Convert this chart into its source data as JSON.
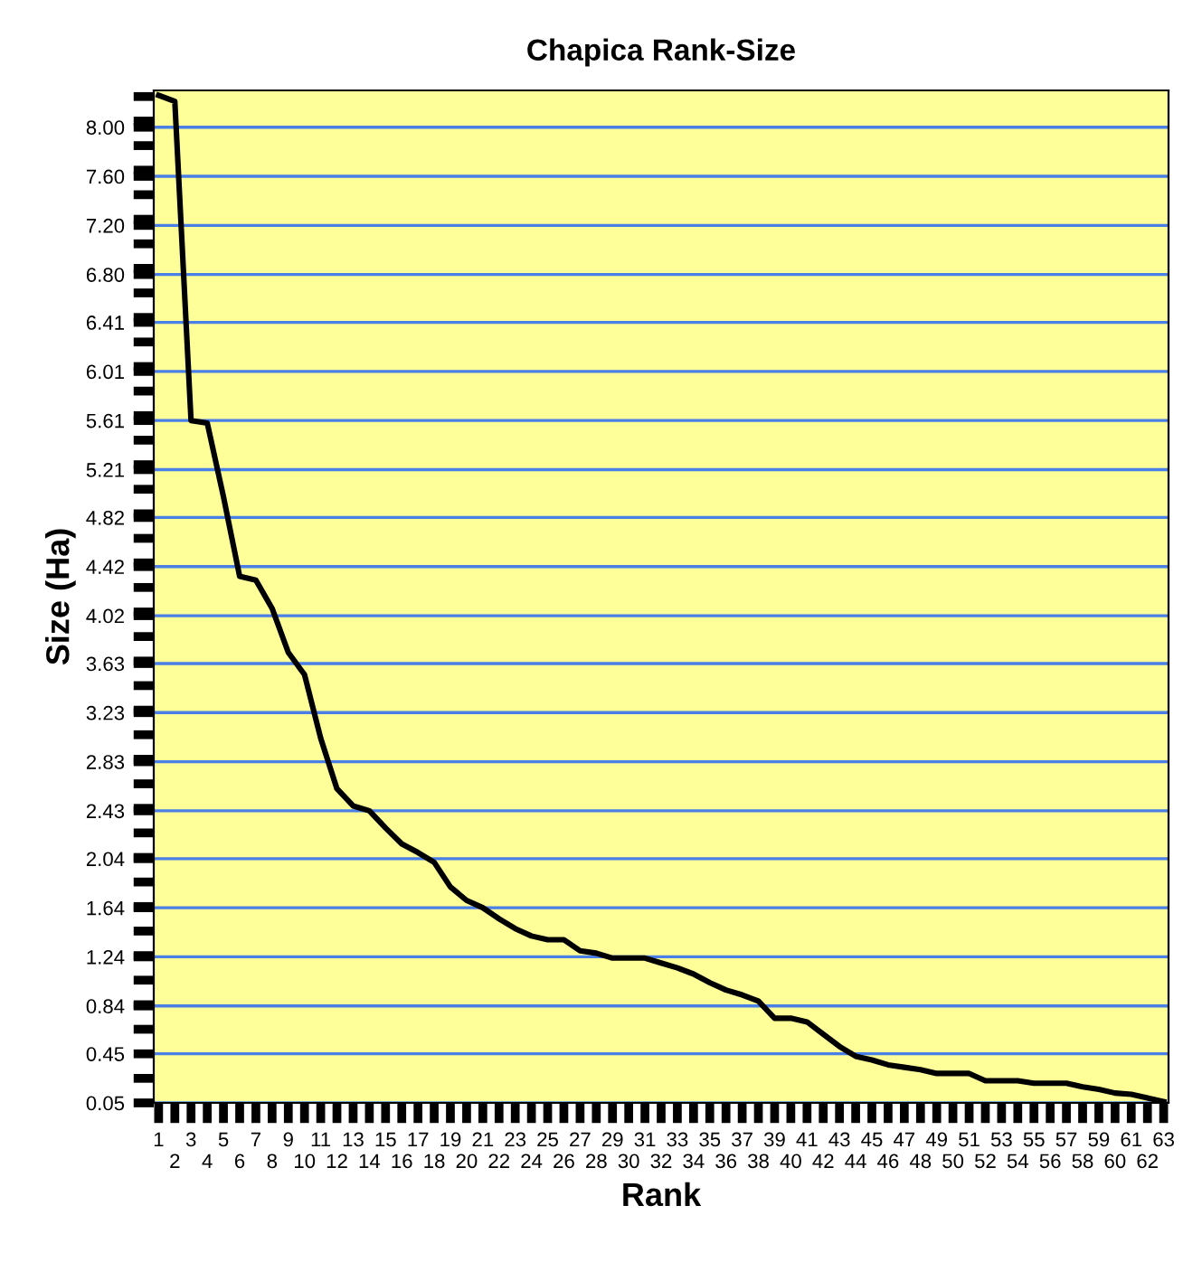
{
  "chart_data": {
    "type": "line",
    "title": "Chapica Rank-Size",
    "xlabel": "Rank",
    "ylabel": "Size (Ha)",
    "categories": [
      "1",
      "2",
      "3",
      "4",
      "5",
      "6",
      "7",
      "8",
      "9",
      "10",
      "11",
      "12",
      "13",
      "14",
      "15",
      "16",
      "17",
      "18",
      "19",
      "20",
      "21",
      "22",
      "23",
      "24",
      "25",
      "26",
      "27",
      "28",
      "29",
      "30",
      "31",
      "32",
      "33",
      "34",
      "35",
      "36",
      "37",
      "38",
      "39",
      "40",
      "41",
      "42",
      "43",
      "44",
      "45",
      "46",
      "47",
      "48",
      "49",
      "50",
      "51",
      "52",
      "53",
      "54",
      "55",
      "56",
      "57",
      "58",
      "59",
      "60",
      "61",
      "62",
      "63"
    ],
    "series": [
      {
        "color": "#000000",
        "values": [
          8.26,
          8.21,
          5.61,
          5.59,
          4.99,
          4.34,
          4.31,
          4.08,
          3.72,
          3.54,
          3.02,
          2.61,
          2.47,
          2.43,
          2.29,
          2.16,
          2.09,
          2.01,
          1.81,
          1.7,
          1.64,
          1.55,
          1.47,
          1.41,
          1.38,
          1.38,
          1.29,
          1.27,
          1.23,
          1.23,
          1.23,
          1.19,
          1.15,
          1.1,
          1.03,
          0.97,
          0.93,
          0.88,
          0.74,
          0.74,
          0.71,
          0.61,
          0.51,
          0.43,
          0.4,
          0.36,
          0.34,
          0.32,
          0.29,
          0.29,
          0.29,
          0.23,
          0.23,
          0.23,
          0.21,
          0.21,
          0.21,
          0.18,
          0.16,
          0.13,
          0.12,
          0.09,
          0.06
        ]
      }
    ],
    "ylim": [
      0.05,
      8.3
    ],
    "yticks": [
      0.05,
      0.45,
      0.84,
      1.24,
      1.64,
      2.04,
      2.43,
      2.83,
      3.23,
      3.63,
      4.02,
      4.42,
      4.82,
      5.21,
      5.61,
      6.01,
      6.41,
      {
        "value": 6.8,
        "label": "6.80"
      },
      {
        "value": 7.2,
        "label": "7.20"
      },
      {
        "value": 7.6,
        "label": "7.60"
      },
      {
        "value": 8,
        "label": "8.00"
      }
    ],
    "grid": "y",
    "marker": "none",
    "line_style": "solid"
  }
}
